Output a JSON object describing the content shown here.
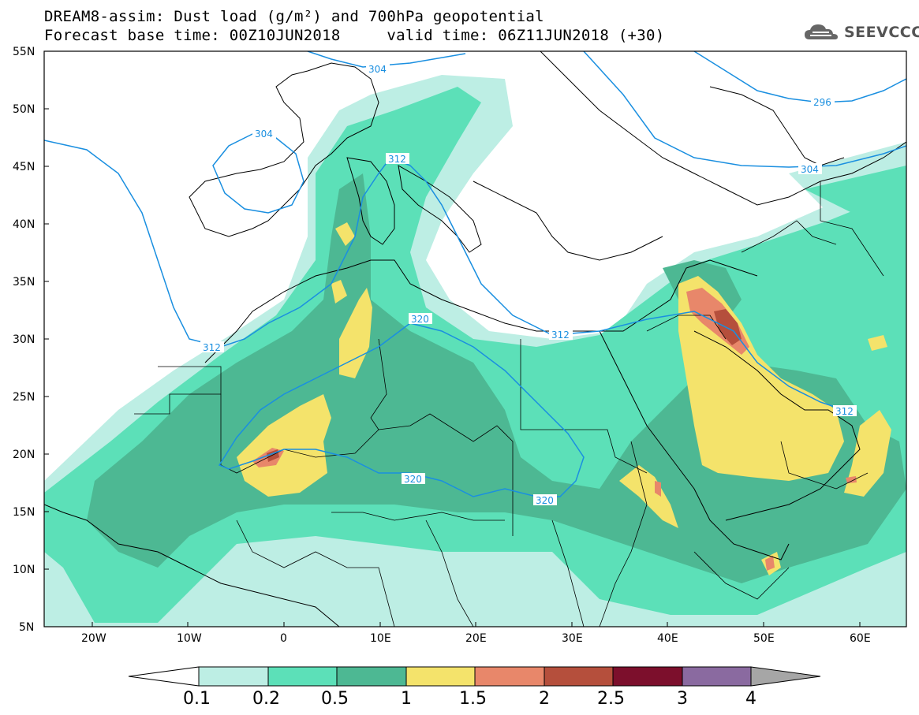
{
  "header": {
    "title_line1": "DREAM8-assim: Dust load (g/m²) and 700hPa geopotential",
    "title_line2": "Forecast base time: 00Z10JUN2018     valid time: 06Z11JUN2018 (+30)"
  },
  "logo": {
    "text": "SEEVCCC",
    "icon": "cloud-icon"
  },
  "map": {
    "lat_labels": [
      "55N",
      "50N",
      "45N",
      "40N",
      "35N",
      "30N",
      "25N",
      "20N",
      "15N",
      "10N",
      "5N"
    ],
    "lon_labels": [
      "20W",
      "10W",
      "0",
      "10E",
      "20E",
      "30E",
      "40E",
      "50E",
      "60E"
    ],
    "contour_labels": [
      "304",
      "304",
      "296",
      "304",
      "312",
      "312",
      "312",
      "312",
      "320",
      "320",
      "320"
    ],
    "colors": {
      "light_cyan": "#bdeee4",
      "aqua_green": "#5ce0b8",
      "teal_green": "#4db893",
      "yellow": "#f4e36b",
      "salmon": "#e8876a",
      "brown": "#b54f3c",
      "maroon": "#7c0f2c",
      "purple": "#8a6aa0",
      "gray": "#a6a6a6",
      "contour": "#1a8fe0"
    }
  },
  "colorbar": {
    "labels": [
      "0.1",
      "0.2",
      "0.5",
      "1",
      "1.5",
      "2",
      "2.5",
      "3",
      "4"
    ]
  }
}
